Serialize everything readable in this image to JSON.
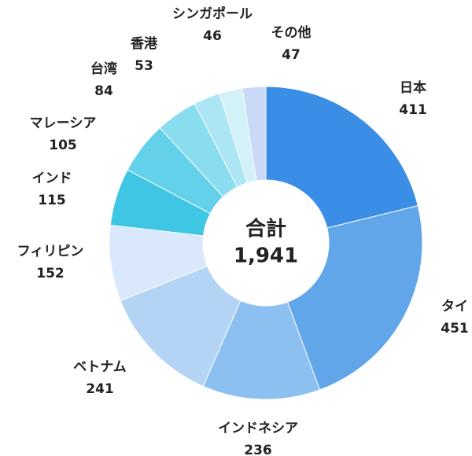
{
  "chart_data": {
    "type": "donut",
    "categories": [
      "日本",
      "タイ",
      "インドネシア",
      "ベトナム",
      "フィリピン",
      "インド",
      "マレーシア",
      "台湾",
      "香港",
      "シンガポール",
      "その他"
    ],
    "values": [
      411,
      451,
      236,
      241,
      152,
      115,
      105,
      84,
      53,
      46,
      47
    ],
    "colors": [
      "#3a8ee6",
      "#62a6ea",
      "#8cc0f0",
      "#b3d4f5",
      "#d9e9fb",
      "#3ec6e4",
      "#63d1ea",
      "#8adcef",
      "#ace5f3",
      "#d2f1f8",
      "#c9d9f7"
    ],
    "center_title": "合計",
    "total": {
      "value": 1941,
      "label": "1,941"
    }
  }
}
